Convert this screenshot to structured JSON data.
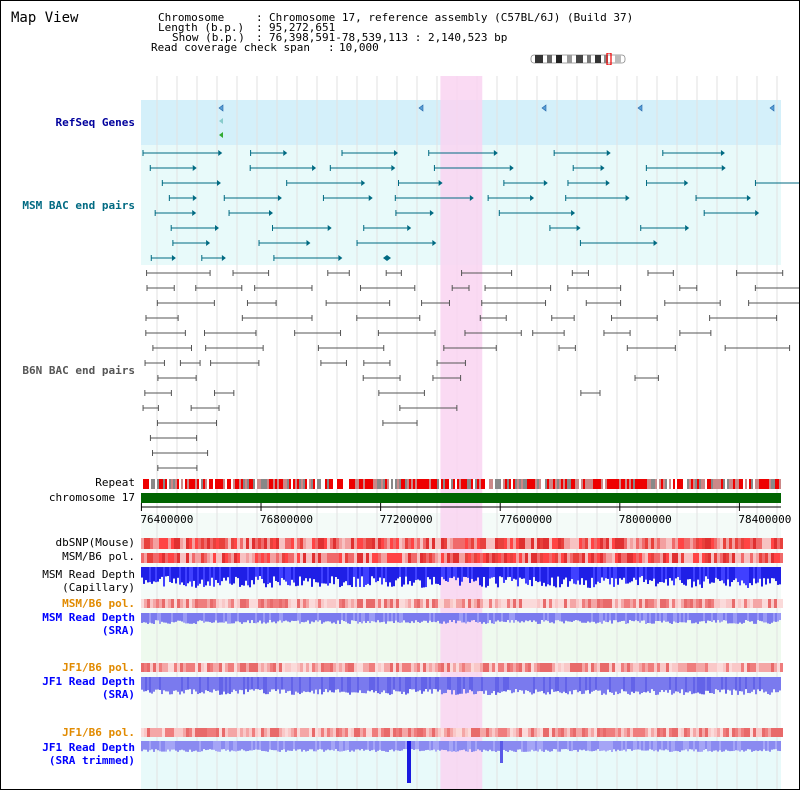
{
  "title": "Map View",
  "info": {
    "chromosome_key": "Chromosome",
    "chromosome_val": "Chromosome 17, reference assembly (C57BL/6J) (Build 37)",
    "length_key": "Length (b.p.)",
    "length_val": "95,272,651",
    "show_key": "Show (b.p.)",
    "show_val": "76,398,591-78,539,113 : 2,140,523 bp",
    "coverage_key": "Read coverage check span",
    "coverage_val": "10,000"
  },
  "tracks": {
    "refseq": "RefSeq Genes",
    "msm_bac": "MSM BAC end pairs",
    "b6n_bac": "B6N BAC end pairs",
    "repeat": "Repeat",
    "chromosome": "chromosome 17",
    "dbsnp": "dbSNP(Mouse)",
    "msm_b6_pol_1": "MSM/B6 pol.",
    "msm_read_depth_cap_1": "MSM Read Depth",
    "msm_read_depth_cap_2": "(Capillary)",
    "msm_b6_pol_2": "MSM/B6 pol.",
    "msm_read_depth_sra_1": "MSM Read Depth",
    "msm_read_depth_sra_2": "(SRA)",
    "jf1_b6_pol_1": "JF1/B6 pol.",
    "jf1_read_depth_sra_1": "JF1 Read Depth",
    "jf1_read_depth_sra_2": "(SRA)",
    "jf1_b6_pol_2": "JF1/B6 pol.",
    "jf1_read_depth_trim_1": "JF1 Read Depth",
    "jf1_read_depth_trim_2": "(SRA trimmed)"
  },
  "axis": {
    "ticks": [
      "76400000",
      "76800000",
      "77200000",
      "77600000",
      "78000000",
      "78400000"
    ],
    "tick_values": [
      76400000,
      76800000,
      77200000,
      77600000,
      78000000,
      78400000
    ],
    "range": [
      76398591,
      78539113
    ]
  },
  "highlight": {
    "start": 77400000,
    "end": 77540000
  },
  "colors": {
    "refseq_bg": "#d4f0fa",
    "msm_bg": "#e8fafa",
    "highlight": "#f9d3f1",
    "chromosome": "#006400",
    "teal": "#006a82",
    "gray": "#555555",
    "depth_blue": "#1f1fe6",
    "depth_light": "#7a7aee",
    "snp_red": "#e8413c"
  }
}
